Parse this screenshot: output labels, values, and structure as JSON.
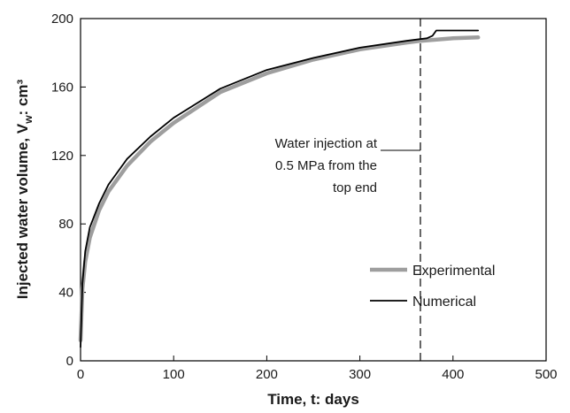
{
  "chart_data": {
    "type": "line",
    "title": "",
    "xlabel": "Time, t: days",
    "ylabel": {
      "prefix": "Injected water volume, V",
      "subscript": "w",
      "suffix": ": cm³"
    },
    "xlim": [
      0,
      500
    ],
    "ylim": [
      0,
      200
    ],
    "xticks": [
      0,
      100,
      200,
      300,
      400,
      500
    ],
    "yticks": [
      0,
      40,
      80,
      120,
      160,
      200
    ],
    "grid": false,
    "legend_position": "bottom-right",
    "series": [
      {
        "name": "Experimental",
        "color": "#9e9e9e",
        "x": [
          0,
          2,
          5,
          10,
          20,
          30,
          50,
          75,
          100,
          150,
          200,
          250,
          300,
          350,
          365,
          400,
          427
        ],
        "y": [
          12,
          42,
          58,
          72,
          88,
          99,
          114,
          128,
          139,
          157,
          168,
          176,
          182,
          186,
          187,
          188.5,
          189
        ]
      },
      {
        "name": "Numerical",
        "color": "#000000",
        "x": [
          0,
          2,
          5,
          10,
          20,
          30,
          50,
          75,
          100,
          150,
          200,
          250,
          300,
          350,
          365,
          372,
          378,
          382,
          400,
          427
        ],
        "y": [
          8,
          45,
          64,
          78,
          92,
          103,
          118,
          131,
          142,
          159,
          170,
          177,
          183,
          187,
          188,
          188.5,
          190,
          193,
          193,
          193
        ]
      }
    ],
    "annotation": {
      "lines": [
        "Water injection at",
        "0.5 MPa from the",
        "top end"
      ],
      "x": 365
    }
  }
}
